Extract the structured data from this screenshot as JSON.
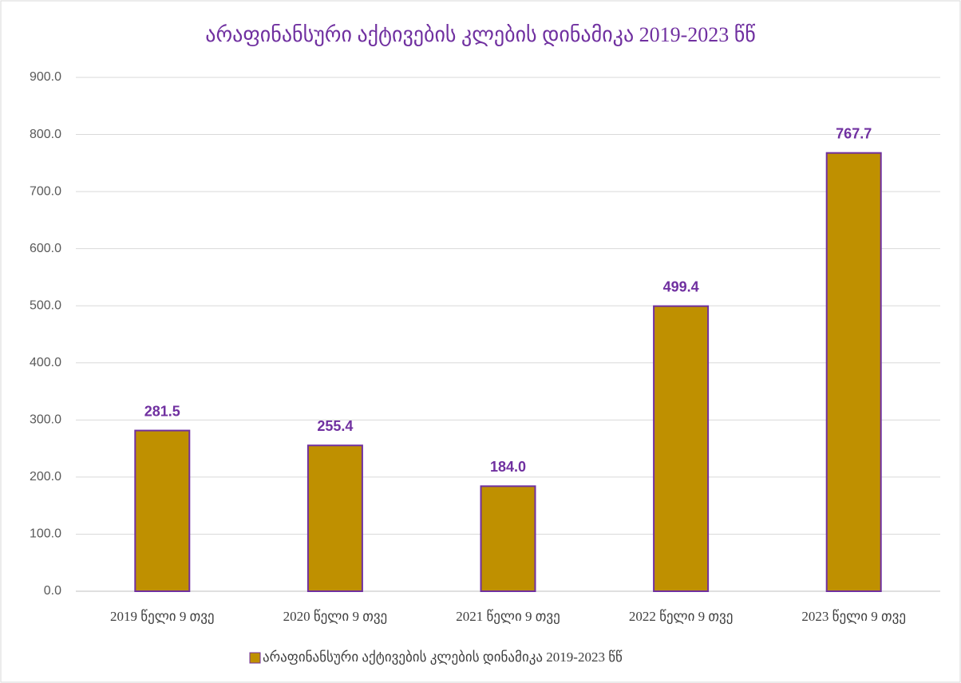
{
  "chart_data": {
    "type": "bar",
    "title": "არაფინანსური აქტივების კლების დინამიკა 2019-2023 წწ",
    "categories": [
      "2019 წელი 9 თვე",
      "2020 წელი 9 თვე",
      "2021 წელი 9 თვე",
      "2022 წელი 9 თვე",
      "2023 წელი 9 თვე"
    ],
    "series": [
      {
        "name": "არაფინანსური აქტივების კლების დინამიკა 2019-2023 წწ",
        "color": "#bf9000",
        "values": [
          281.5,
          255.4,
          184.0,
          499.4,
          767.7
        ],
        "value_labels": [
          "281.5",
          "255.4",
          "184.0",
          "499.4",
          "767.7"
        ]
      }
    ],
    "ylim": [
      0,
      900
    ],
    "yticks": [
      {
        "value": 0,
        "label": "0.0"
      },
      {
        "value": 100,
        "label": "100.0"
      },
      {
        "value": 200,
        "label": "200.0"
      },
      {
        "value": 300,
        "label": "300.0"
      },
      {
        "value": 400,
        "label": "400.0"
      },
      {
        "value": 500,
        "label": "500.0"
      },
      {
        "value": 600,
        "label": "600.0"
      },
      {
        "value": 700,
        "label": "700.0"
      },
      {
        "value": 800,
        "label": "800.0"
      },
      {
        "value": 900,
        "label": "900.0"
      }
    ],
    "grid": true,
    "legend": "bottom"
  }
}
